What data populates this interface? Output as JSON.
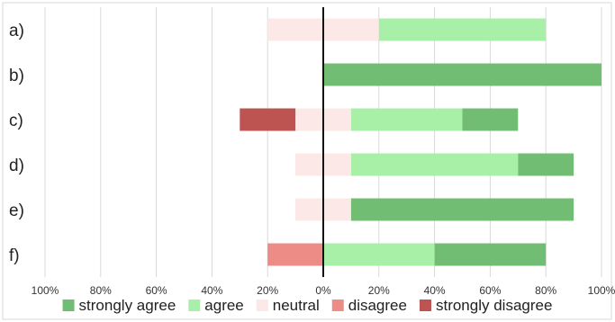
{
  "chart_data": {
    "type": "bar",
    "orientation": "horizontal",
    "stacked": "diverging",
    "categories": [
      "a)",
      "b)",
      "c)",
      "d)",
      "e)",
      "f)"
    ],
    "series": [
      {
        "name": "strongly agree",
        "color": "#72bd74",
        "values": [
          0,
          100,
          20,
          20,
          80,
          40
        ]
      },
      {
        "name": "agree",
        "color": "#a8f0a8",
        "values": [
          60,
          0,
          40,
          60,
          0,
          40
        ]
      },
      {
        "name": "neutral",
        "color": "#fce8e6",
        "values": [
          40,
          0,
          20,
          20,
          20,
          0
        ]
      },
      {
        "name": "disagree",
        "color": "#ed8b87",
        "values": [
          0,
          0,
          0,
          0,
          0,
          20
        ]
      },
      {
        "name": "strongly disagree",
        "color": "#bd5451",
        "values": [
          0,
          0,
          20,
          0,
          0,
          0
        ]
      }
    ],
    "x_ticks": [
      "100%",
      "80%",
      "60%",
      "40%",
      "20%",
      "0%",
      "20%",
      "40%",
      "60%",
      "80%",
      "100%"
    ],
    "xlim": [
      -100,
      100
    ],
    "grid": true,
    "legend_position": "bottom"
  }
}
